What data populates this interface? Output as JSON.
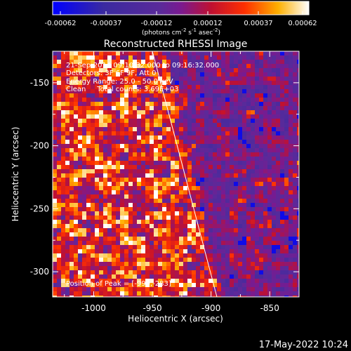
{
  "colorbar": {
    "ticks": [
      "-0.00062",
      "-0.00037",
      "-0.00012",
      "0.00012",
      "0.00037",
      "0.00062"
    ],
    "unit": "(photons cm",
    "unit_exp1": "-2",
    "unit_mid": " s",
    "unit_exp2": "-1",
    "unit_mid2": " asec",
    "unit_exp3": "-2",
    "unit_end": ")"
  },
  "image": {
    "title": "Reconstructed RHESSI Image",
    "line1": "21-Sep-2014 09:10:32.000 to 09:16:32.000",
    "line2": "Detectors: 3F 6F 9F, Att 0",
    "line3": "Energy Range: 25.0 - 50.0 keV",
    "line4": "Clean     Total counts: 3.69E+03",
    "peak": "Position of Peak = [-990,-283]"
  },
  "footer": {
    "timestamp": "17-May-2022 10:24"
  },
  "colors": {
    "line": "#ffffff",
    "background": "#000000"
  },
  "chart_data": {
    "type": "heatmap",
    "title": "Reconstructed RHESSI Image",
    "xlabel": "Heliocentric X (arcsec)",
    "ylabel": "Heliocentric Y (arcsec)",
    "xlim": [
      -1035,
      -825
    ],
    "ylim": [
      -320,
      -125
    ],
    "xticks": [
      -1000,
      -950,
      -900,
      -850
    ],
    "yticks": [
      -150,
      -200,
      -250,
      -300
    ],
    "xtick_labels": [
      "-1000",
      "-950",
      "-900",
      "-850"
    ],
    "ytick_labels": [
      "-150",
      "-200",
      "-250",
      "-300"
    ],
    "color_range": [
      -0.00062,
      0.00062
    ],
    "limb_line": [
      [
        -950,
        -125
      ],
      [
        -895,
        -320
      ]
    ],
    "peak_position": [
      -990,
      -283
    ]
  }
}
